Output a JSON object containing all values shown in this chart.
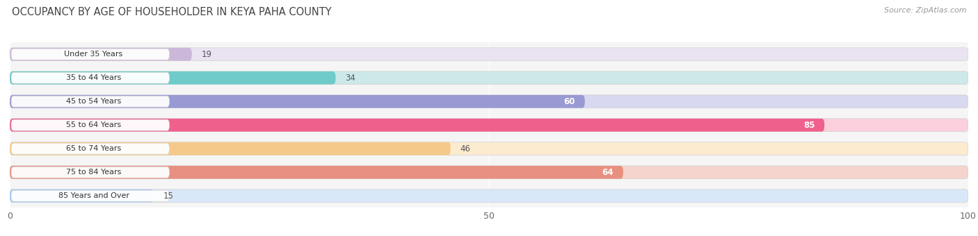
{
  "title": "OCCUPANCY BY AGE OF HOUSEHOLDER IN KEYA PAHA COUNTY",
  "source": "Source: ZipAtlas.com",
  "categories": [
    "Under 35 Years",
    "35 to 44 Years",
    "45 to 54 Years",
    "55 to 64 Years",
    "65 to 74 Years",
    "75 to 84 Years",
    "85 Years and Over"
  ],
  "values": [
    19,
    34,
    60,
    85,
    46,
    64,
    15
  ],
  "bar_colors": [
    "#cbb8d9",
    "#6ecbca",
    "#9999d4",
    "#f0608c",
    "#f5c98a",
    "#e89080",
    "#a8c8f0"
  ],
  "bar_bg_colors": [
    "#eae4f2",
    "#cde8e8",
    "#d8d8f0",
    "#fbd0dc",
    "#fdebd0",
    "#f4d4cc",
    "#d8e8f8"
  ],
  "xlim": [
    0,
    100
  ],
  "value_label_color_threshold": 50,
  "bar_height": 0.55,
  "figsize": [
    14.06,
    3.4
  ],
  "dpi": 100
}
